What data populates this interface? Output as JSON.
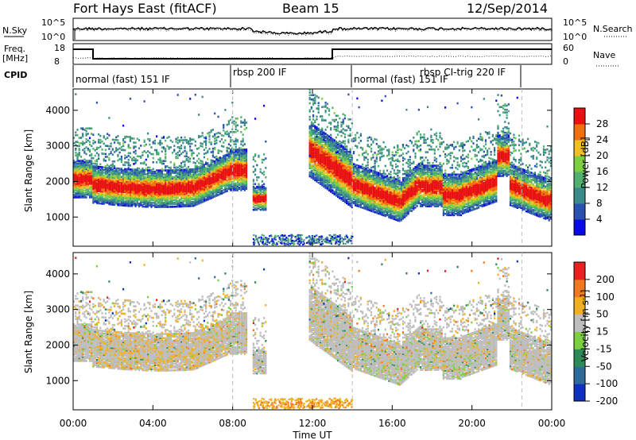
{
  "header": {
    "station": "Fort Hays East (fitACF)",
    "beam": "Beam 15",
    "date": "12/Sep/2014"
  },
  "top_panels": {
    "nsky_label": "N.Sky",
    "nsky_ticks": [
      "10^5",
      "10^0"
    ],
    "nsearch_label": "N.Search",
    "nsearch_ticks": [
      "10^5",
      "10^0"
    ],
    "freq_label_1": "Freq.",
    "freq_label_2": "[MHz]",
    "freq_ticks": [
      "18",
      "8"
    ],
    "nave_label": "Nave",
    "nave_ticks": [
      "60",
      "0"
    ],
    "cpid_label": "CPID"
  },
  "modes": [
    {
      "label": "normal (fast) 151 IF",
      "start_hr": 0.0
    },
    {
      "label": "rbsp 200 IF",
      "start_hr": 8.0
    },
    {
      "label": "normal (fast) 151 IF",
      "start_hr": 14.0
    },
    {
      "label": "rbsp CI-trig 220 IF",
      "start_hr": 18.0
    }
  ],
  "chart_data": [
    {
      "type": "heatmap",
      "name": "power",
      "ylabel": "Slant Range [km]",
      "xlabel": "",
      "ylim": [
        180,
        4600
      ],
      "yticks": [
        "1000",
        "2000",
        "3000",
        "4000"
      ],
      "colorbar_label": "Power [dB]",
      "colorbar_ticks": [
        "28",
        "24",
        "20",
        "16",
        "12",
        "8",
        "4"
      ],
      "colors": [
        "#0a0ae6",
        "#2a50b0",
        "#3a8a8a",
        "#50b070",
        "#7ed040",
        "#f0c020",
        "#f07010",
        "#e81010"
      ]
    },
    {
      "type": "heatmap",
      "name": "velocity",
      "ylabel": "Slant Range [km]",
      "xlabel": "Time UT",
      "ylim": [
        180,
        4600
      ],
      "yticks": [
        "1000",
        "2000",
        "3000",
        "4000"
      ],
      "xticks": [
        "00:00",
        "04:00",
        "08:00",
        "12:00",
        "16:00",
        "20:00",
        "00:00"
      ],
      "colorbar_label_main": "Velocity [m s",
      "colorbar_label_sup": "-1",
      "colorbar_label_end": "]",
      "colorbar_ticks": [
        "200",
        "100",
        "50",
        "15",
        "-15",
        "-50",
        "-100",
        "-200"
      ],
      "colors": [
        "#1030c0",
        "#2f6b9a",
        "#2e8b57",
        "#7cd040",
        "#bdbdbd",
        "#f0b020",
        "#f07820",
        "#e82020"
      ]
    }
  ]
}
